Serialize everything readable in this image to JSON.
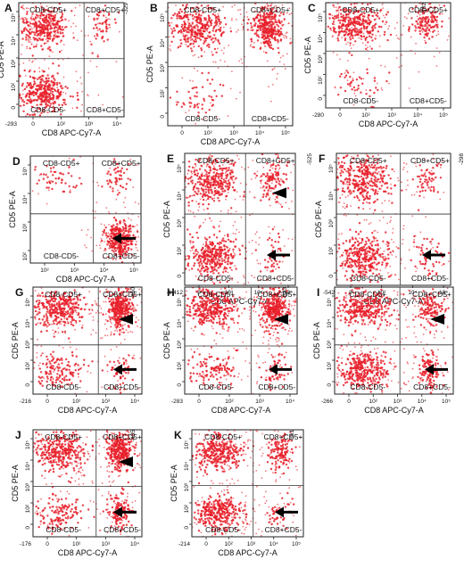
{
  "figure": {
    "labels": {
      "ur": "CD8+CD5+",
      "ul": "CD8-CD5+",
      "ll": "CD8-CD5-",
      "lr": "CD8+CD5-",
      "xlabel": "CD8 APC-Cy7-A",
      "ylabel": "CD5 PE-A"
    },
    "colors": {
      "dots": "#e8202a",
      "frame": "#222222",
      "gate": "#333333"
    }
  },
  "chart_data": {
    "type": "scatter",
    "panels": [
      {
        "id": "A",
        "xmin": "-293",
        "ymin": "-329",
        "xticks": [
          "0",
          "10²",
          "10³",
          "10⁴"
        ],
        "yticks": [
          "0",
          "10²",
          "10³",
          "10⁴",
          "10⁵"
        ],
        "clusters": [
          {
            "q": "ul",
            "size": "large"
          },
          {
            "q": "ur",
            "size": "small"
          },
          {
            "q": "ll",
            "size": "large"
          }
        ],
        "arrows": []
      },
      {
        "id": "B",
        "xmin": "",
        "ymin": "",
        "xticks": [
          "0",
          "10²",
          "10³",
          "10⁴",
          "10⁵"
        ],
        "yticks": [
          "0",
          "10²",
          "10³",
          "10⁴",
          "10⁵"
        ],
        "clusters": [
          {
            "q": "ul",
            "size": "large"
          },
          {
            "q": "ur",
            "size": "large"
          },
          {
            "q": "ll",
            "size": "small"
          }
        ],
        "arrows": []
      },
      {
        "id": "C",
        "xmin": "-280",
        "ymin": "-182",
        "xticks": [
          "0",
          "10²",
          "10³",
          "10⁴",
          "10⁵"
        ],
        "yticks": [
          "0",
          "10²",
          "10³",
          "10⁴",
          "10⁵"
        ],
        "clusters": [
          {
            "q": "ul",
            "size": "large"
          },
          {
            "q": "ur",
            "size": "medium"
          },
          {
            "q": "ll",
            "size": "small"
          }
        ],
        "arrows": []
      },
      {
        "id": "D",
        "xmin": "",
        "ymin": "",
        "xticks": [
          "10²",
          "10³",
          "10⁴",
          "10⁵"
        ],
        "yticks": [
          "10²",
          "10³",
          "10⁴",
          "10⁵"
        ],
        "clusters": [
          {
            "q": "ul",
            "size": "small"
          },
          {
            "q": "ur",
            "size": "small"
          },
          {
            "q": "lr",
            "size": "large"
          }
        ],
        "arrows": [
          {
            "type": "arrow",
            "q": "lr"
          }
        ]
      },
      {
        "id": "E",
        "xmin": "-1,412",
        "ymin": "-525",
        "xticks": [
          "0",
          "10³",
          "10⁴",
          "10⁵"
        ],
        "yticks": [
          "0",
          "10²",
          "10³",
          "10⁴",
          "10⁵"
        ],
        "clusters": [
          {
            "q": "ul",
            "size": "large"
          },
          {
            "q": "ur",
            "size": "medium"
          },
          {
            "q": "ll",
            "size": "large"
          },
          {
            "q": "lr",
            "size": "small"
          }
        ],
        "arrows": [
          {
            "type": "triangle",
            "q": "ur"
          },
          {
            "type": "arrow",
            "q": "lr"
          }
        ]
      },
      {
        "id": "F",
        "xmin": "-542",
        "ymin": "-298",
        "xticks": [
          "0",
          "10³",
          "10⁴",
          "10⁵"
        ],
        "yticks": [
          "0",
          "10²",
          "10³",
          "10⁴",
          "10⁵"
        ],
        "clusters": [
          {
            "q": "ul",
            "size": "large"
          },
          {
            "q": "ur",
            "size": "small"
          },
          {
            "q": "ll",
            "size": "large"
          },
          {
            "q": "lr",
            "size": "small"
          }
        ],
        "arrows": [
          {
            "type": "arrow",
            "q": "lr"
          }
        ]
      },
      {
        "id": "G",
        "xmin": "-216",
        "ymin": "-460",
        "xticks": [
          "0",
          "10²",
          "10³",
          "10⁴"
        ],
        "yticks": [
          "0",
          "10²",
          "10³",
          "10⁴",
          "10⁵"
        ],
        "clusters": [
          {
            "q": "ul",
            "size": "large"
          },
          {
            "q": "ur",
            "size": "large"
          },
          {
            "q": "ll",
            "size": "medium"
          },
          {
            "q": "lr",
            "size": "small"
          }
        ],
        "arrows": [
          {
            "type": "triangle",
            "q": "ur"
          },
          {
            "type": "arrow",
            "q": "lr"
          }
        ]
      },
      {
        "id": "H",
        "xmin": "-283",
        "ymin": "-323",
        "xticks": [
          "0",
          "10²",
          "10³",
          "10⁴"
        ],
        "yticks": [
          "0",
          "10²",
          "10³",
          "10⁴",
          "10⁵"
        ],
        "clusters": [
          {
            "q": "ul",
            "size": "large"
          },
          {
            "q": "ur",
            "size": "large"
          },
          {
            "q": "ll",
            "size": "medium"
          },
          {
            "q": "lr",
            "size": "small"
          }
        ],
        "arrows": [
          {
            "type": "triangle",
            "q": "ur"
          },
          {
            "type": "arrow",
            "q": "lr"
          }
        ]
      },
      {
        "id": "I",
        "xmin": "-266",
        "ymin": "",
        "xticks": [
          "0",
          "10²",
          "10³",
          "10⁴",
          "10⁵"
        ],
        "yticks": [
          "0",
          "10²",
          "10³",
          "10⁴",
          "10⁵"
        ],
        "clusters": [
          {
            "q": "ul",
            "size": "large"
          },
          {
            "q": "ur",
            "size": "medium"
          },
          {
            "q": "ll",
            "size": "large"
          },
          {
            "q": "lr",
            "size": "medium"
          }
        ],
        "arrows": [
          {
            "type": "triangle",
            "q": "ur"
          },
          {
            "type": "arrow",
            "q": "lr"
          }
        ]
      },
      {
        "id": "J",
        "xmin": "-176",
        "ymin": "-435",
        "xticks": [
          "0",
          "10²",
          "10³",
          "10⁴"
        ],
        "yticks": [
          "0",
          "10²",
          "10³",
          "10⁴",
          "10⁵"
        ],
        "clusters": [
          {
            "q": "ul",
            "size": "large"
          },
          {
            "q": "ur",
            "size": "large"
          },
          {
            "q": "ll",
            "size": "medium"
          },
          {
            "q": "lr",
            "size": "medium"
          }
        ],
        "arrows": [
          {
            "type": "triangle",
            "q": "ur"
          },
          {
            "type": "arrow",
            "q": "lr"
          }
        ]
      },
      {
        "id": "K",
        "xmin": "-214",
        "ymin": "-361",
        "xticks": [
          "0",
          "10²",
          "10³",
          "10⁴",
          "10⁵"
        ],
        "yticks": [
          "0",
          "10²",
          "10³",
          "10⁴",
          "10⁵"
        ],
        "clusters": [
          {
            "q": "ul",
            "size": "large"
          },
          {
            "q": "ur",
            "size": "medium"
          },
          {
            "q": "ll",
            "size": "large"
          },
          {
            "q": "lr",
            "size": "small"
          }
        ],
        "arrows": [
          {
            "type": "arrow",
            "q": "lr"
          }
        ]
      }
    ]
  }
}
